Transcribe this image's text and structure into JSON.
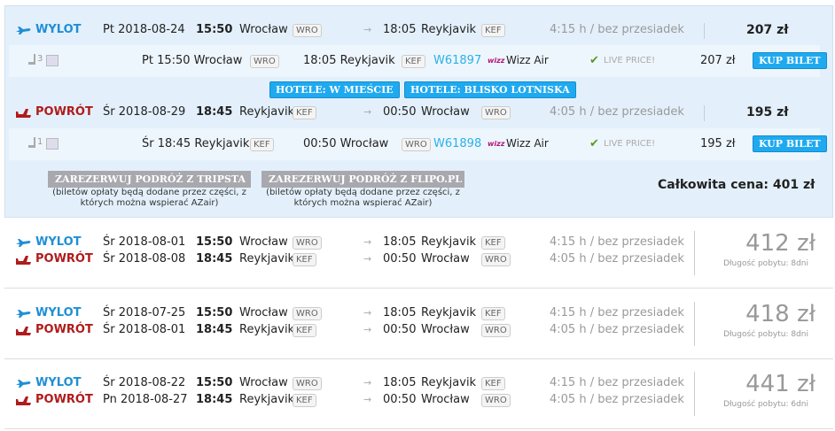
{
  "expanded": {
    "outbound": {
      "label": "WYLOT",
      "date": "Pt 2018-08-24",
      "dep_time": "15:50",
      "dep_city": "Wrocław",
      "dep_code": "WRO",
      "arr_time": "18:05",
      "arr_city": "Reykjavik",
      "arr_code": "KEF",
      "duration": "4:15 h / bez przesiadek",
      "price": "207 zł",
      "segment": {
        "seats": "3",
        "dep": "Pt 15:50 Wrocław",
        "dep_code": "WRO",
        "arr": "18:05 Reykjavik",
        "arr_code": "KEF",
        "flight": "W61897",
        "airline_logo": "wizz",
        "airline": "Wizz Air",
        "live": "LIVE PRICE!",
        "price": "207 zł",
        "buy": "KUP BILET"
      }
    },
    "hotels": {
      "city": "HOTELE: W MIEŚCIE",
      "airport": "HOTELE: BLISKO LOTNISKA"
    },
    "return": {
      "label": "POWRÓT",
      "date": "Śr 2018-08-29",
      "dep_time": "18:45",
      "dep_city": "Reykjavik",
      "dep_code": "KEF",
      "arr_time": "00:50",
      "arr_city": "Wrocław",
      "arr_code": "WRO",
      "duration": "4:05 h / bez przesiadek",
      "price": "195 zł",
      "segment": {
        "seats": "1",
        "dep": "Śr 18:45 Reykjavik",
        "dep_code": "KEF",
        "arr": "00:50 Wrocław",
        "arr_code": "WRO",
        "flight": "W61898",
        "airline_logo": "wizz",
        "airline": "Wizz Air",
        "live": "LIVE PRICE!",
        "price": "195 zł",
        "buy": "KUP BILET"
      }
    },
    "book": [
      {
        "label": "ZAREZERWUJ PODRÓŻ Z TRIPSTA",
        "note": "(biletów opłaty będą dodane przez części, z których można wspierać AZair)"
      },
      {
        "label": "ZAREZERWUJ PODRÓŻ Z FLIPO.PL",
        "note": "(biletów opłaty będą dodane przez części, z których można wspierać AZair)"
      }
    ],
    "total": "Całkowita cena: 401 zł"
  },
  "results": [
    {
      "out": {
        "label": "WYLOT",
        "date": "Śr 2018-08-01",
        "dep_time": "15:50",
        "dep_city": "Wrocław",
        "dep_code": "WRO",
        "arr_time": "18:05",
        "arr_city": "Reykjavik",
        "arr_code": "KEF",
        "duration": "4:15 h / bez przesiadek"
      },
      "ret": {
        "label": "POWRÓT",
        "date": "Śr 2018-08-08",
        "dep_time": "18:45",
        "dep_city": "Reykjavik",
        "dep_code": "KEF",
        "arr_time": "00:50",
        "arr_city": "Wrocław",
        "arr_code": "WRO",
        "duration": "4:05 h / bez przesiadek"
      },
      "price": "412 zł",
      "stay": "Długość pobytu: 8dni"
    },
    {
      "out": {
        "label": "WYLOT",
        "date": "Śr 2018-07-25",
        "dep_time": "15:50",
        "dep_city": "Wrocław",
        "dep_code": "WRO",
        "arr_time": "18:05",
        "arr_city": "Reykjavik",
        "arr_code": "KEF",
        "duration": "4:15 h / bez przesiadek"
      },
      "ret": {
        "label": "POWRÓT",
        "date": "Śr 2018-08-01",
        "dep_time": "18:45",
        "dep_city": "Reykjavik",
        "dep_code": "KEF",
        "arr_time": "00:50",
        "arr_city": "Wrocław",
        "arr_code": "WRO",
        "duration": "4:05 h / bez przesiadek"
      },
      "price": "418 zł",
      "stay": "Długość pobytu: 8dni"
    },
    {
      "out": {
        "label": "WYLOT",
        "date": "Śr 2018-08-22",
        "dep_time": "15:50",
        "dep_city": "Wrocław",
        "dep_code": "WRO",
        "arr_time": "18:05",
        "arr_city": "Reykjavik",
        "arr_code": "KEF",
        "duration": "4:15 h / bez przesiadek"
      },
      "ret": {
        "label": "POWRÓT",
        "date": "Pn 2018-08-27",
        "dep_time": "18:45",
        "dep_city": "Reykjavik",
        "dep_code": "KEF",
        "arr_time": "00:50",
        "arr_city": "Wrocław",
        "arr_code": "WRO",
        "duration": "4:05 h / bez przesiadek"
      },
      "price": "441 zł",
      "stay": "Długość pobytu: 6dni"
    }
  ]
}
